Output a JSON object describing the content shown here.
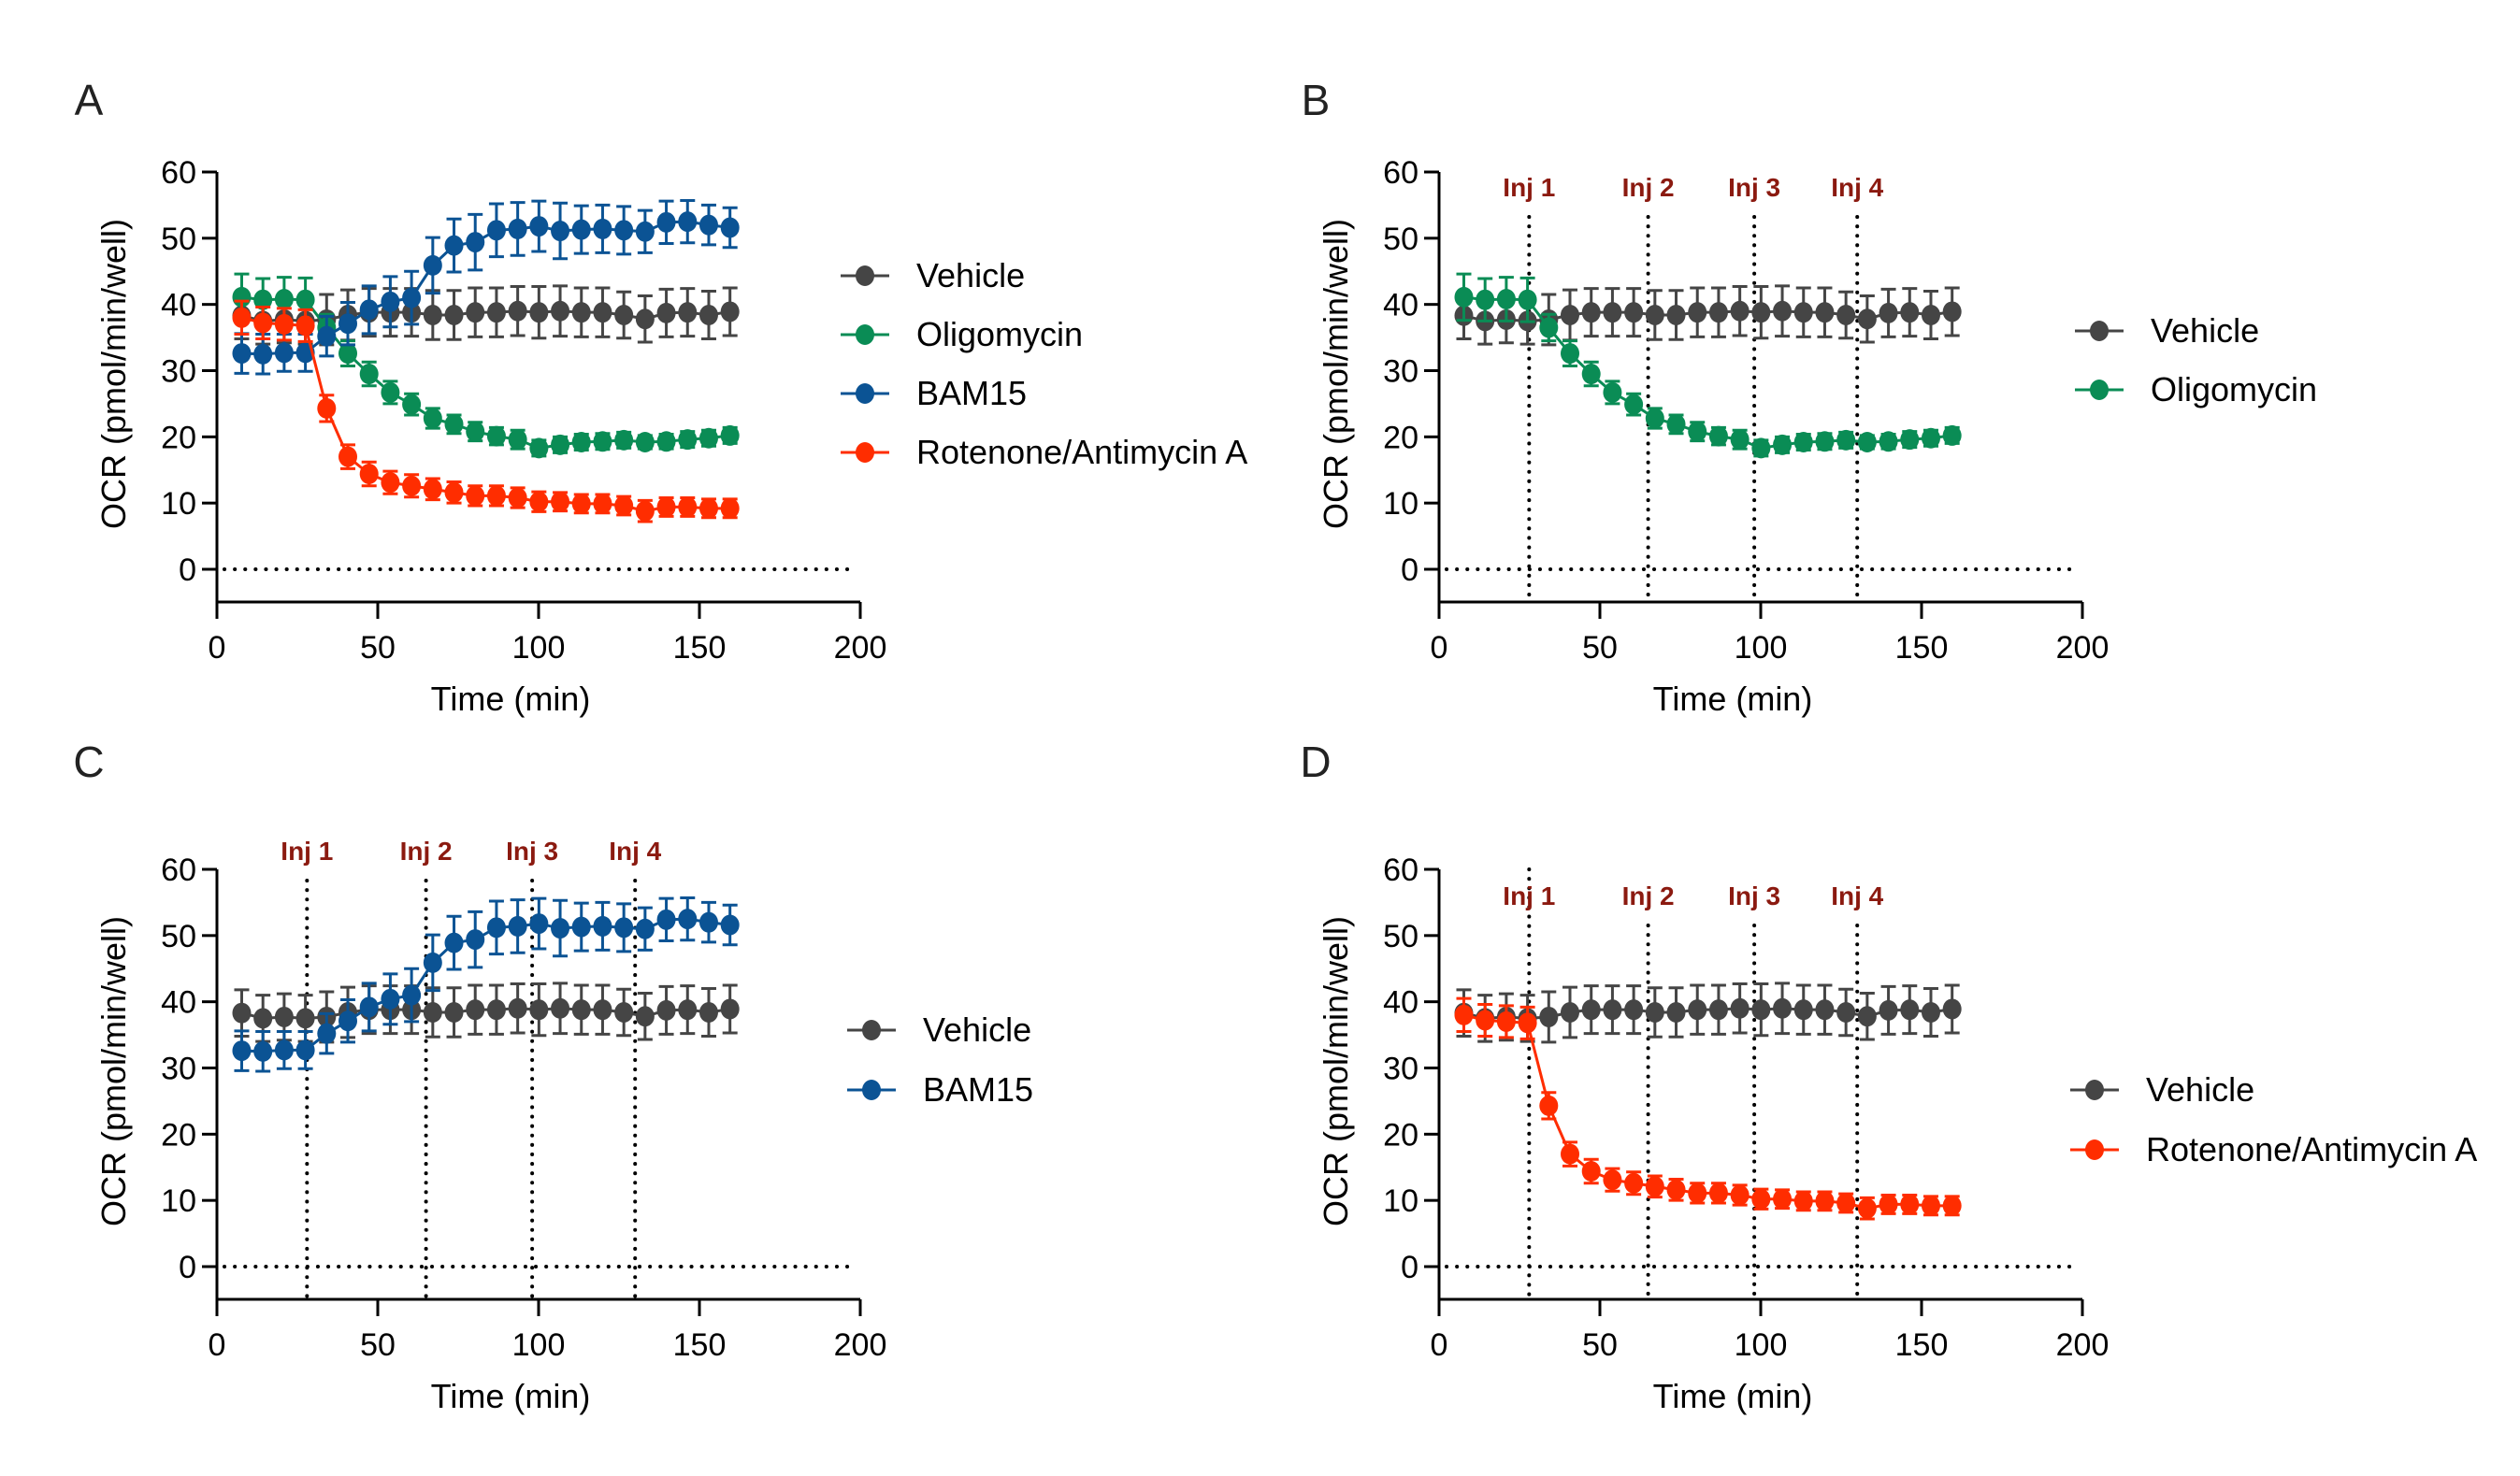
{
  "figure": {
    "panels_count": 4
  },
  "chart_data": [
    {
      "panel": "A",
      "type": "line",
      "xlabel": "Time (min)",
      "ylabel": "OCR (pmol/min/well)",
      "xlim": [
        0,
        200
      ],
      "ylim": [
        -5,
        60
      ],
      "xticks": [
        "0",
        "50",
        "100",
        "150",
        "200"
      ],
      "yticks": [
        "0",
        "10",
        "20",
        "30",
        "40",
        "50",
        "60"
      ],
      "reference_line_y": 0,
      "injections": [],
      "legend_position": "right",
      "x": [
        7.7,
        14.3,
        20.9,
        27.5,
        34.1,
        40.7,
        47.3,
        53.9,
        60.5,
        67.1,
        73.7,
        80.3,
        86.9,
        93.5,
        100.1,
        106.7,
        113.3,
        119.9,
        126.5,
        133.1,
        139.7,
        146.3,
        152.9,
        159.5
      ],
      "series": [
        {
          "name": "Vehicle",
          "color": "#454545",
          "values": [
            38.3,
            37.5,
            37.7,
            37.5,
            37.7,
            38.4,
            38.8,
            38.8,
            38.8,
            38.4,
            38.4,
            38.8,
            38.8,
            39.0,
            38.8,
            39.0,
            38.8,
            38.8,
            38.4,
            37.8,
            38.7,
            38.8,
            38.4,
            38.9
          ],
          "errors": [
            3.5,
            3.5,
            3.5,
            3.5,
            3.8,
            3.8,
            3.6,
            3.6,
            3.6,
            3.7,
            3.7,
            3.7,
            3.7,
            3.7,
            3.9,
            3.8,
            3.7,
            3.7,
            3.5,
            3.5,
            3.6,
            3.6,
            3.6,
            3.6
          ]
        },
        {
          "name": "Oligomycin",
          "color": "#0a8c55",
          "values": [
            41.1,
            40.7,
            40.8,
            40.7,
            36.5,
            32.6,
            29.5,
            26.7,
            24.9,
            22.8,
            21.9,
            20.8,
            20.1,
            19.6,
            18.3,
            18.8,
            19.2,
            19.3,
            19.5,
            19.2,
            19.3,
            19.6,
            19.8,
            20.2
          ],
          "errors": [
            3.5,
            3.2,
            3.3,
            3.3,
            2.0,
            1.9,
            1.8,
            1.7,
            1.6,
            1.5,
            1.4,
            1.4,
            1.3,
            1.4,
            1.2,
            1.2,
            1.2,
            1.2,
            1.2,
            1.0,
            1.1,
            1.2,
            1.2,
            1.2
          ]
        },
        {
          "name": "BAM15",
          "color": "#0b5394",
          "values": [
            32.6,
            32.5,
            32.7,
            32.7,
            35.2,
            37.1,
            39.2,
            40.4,
            41.0,
            45.9,
            48.9,
            49.4,
            51.2,
            51.4,
            51.8,
            51.1,
            51.3,
            51.4,
            51.2,
            51.0,
            52.4,
            52.5,
            52.0,
            51.6
          ],
          "errors": [
            3.0,
            3.0,
            2.8,
            2.8,
            3.0,
            3.2,
            3.6,
            3.8,
            4.0,
            4.2,
            4.0,
            4.2,
            4.0,
            4.0,
            3.8,
            4.2,
            3.6,
            3.6,
            3.6,
            3.2,
            3.2,
            3.2,
            3.0,
            3.0
          ]
        },
        {
          "name": "Rotenone/Antimycin A",
          "color": "#ff2d00",
          "values": [
            38.0,
            37.2,
            37.0,
            36.8,
            24.3,
            17.0,
            14.4,
            13.1,
            12.6,
            12.1,
            11.6,
            11.1,
            11.1,
            10.8,
            10.2,
            10.2,
            9.9,
            9.9,
            9.6,
            8.8,
            9.4,
            9.4,
            9.2,
            9.2
          ],
          "errors": [
            2.5,
            2.4,
            2.4,
            2.4,
            2.0,
            1.8,
            1.8,
            1.7,
            1.7,
            1.6,
            1.6,
            1.5,
            1.5,
            1.5,
            1.5,
            1.4,
            1.4,
            1.4,
            1.4,
            1.6,
            1.4,
            1.4,
            1.4,
            1.4
          ]
        }
      ]
    },
    {
      "panel": "B",
      "type": "line",
      "xlabel": "Time (min)",
      "ylabel": "OCR (pmol/min/well)",
      "xlim": [
        0,
        200
      ],
      "ylim": [
        -5,
        60
      ],
      "xticks": [
        "0",
        "50",
        "100",
        "150",
        "200"
      ],
      "yticks": [
        "0",
        "10",
        "20",
        "30",
        "40",
        "50",
        "60"
      ],
      "reference_line_y": 0,
      "injections": [
        {
          "label": "Inj 1",
          "x": 28
        },
        {
          "label": "Inj 2",
          "x": 65
        },
        {
          "label": "Inj 3",
          "x": 98
        },
        {
          "label": "Inj 4",
          "x": 130
        }
      ],
      "injection_color": "#8b1a10",
      "legend_position": "right",
      "x": [
        7.7,
        14.3,
        20.9,
        27.5,
        34.1,
        40.7,
        47.3,
        53.9,
        60.5,
        67.1,
        73.7,
        80.3,
        86.9,
        93.5,
        100.1,
        106.7,
        113.3,
        119.9,
        126.5,
        133.1,
        139.7,
        146.3,
        152.9,
        159.5
      ],
      "series": [
        {
          "name": "Vehicle",
          "color": "#454545",
          "values": [
            38.3,
            37.5,
            37.7,
            37.5,
            37.7,
            38.4,
            38.8,
            38.8,
            38.8,
            38.4,
            38.4,
            38.8,
            38.8,
            39.0,
            38.8,
            39.0,
            38.8,
            38.8,
            38.4,
            37.8,
            38.7,
            38.8,
            38.4,
            38.9
          ],
          "errors": [
            3.5,
            3.5,
            3.5,
            3.5,
            3.8,
            3.8,
            3.6,
            3.6,
            3.6,
            3.7,
            3.7,
            3.7,
            3.7,
            3.7,
            3.9,
            3.8,
            3.7,
            3.7,
            3.5,
            3.5,
            3.6,
            3.6,
            3.6,
            3.6
          ]
        },
        {
          "name": "Oligomycin",
          "color": "#0a8c55",
          "values": [
            41.1,
            40.7,
            40.8,
            40.7,
            36.5,
            32.6,
            29.5,
            26.7,
            24.9,
            22.8,
            21.9,
            20.8,
            20.1,
            19.6,
            18.3,
            18.8,
            19.2,
            19.3,
            19.5,
            19.2,
            19.3,
            19.6,
            19.8,
            20.2
          ],
          "errors": [
            3.5,
            3.2,
            3.3,
            3.3,
            2.0,
            1.9,
            1.8,
            1.7,
            1.6,
            1.5,
            1.4,
            1.4,
            1.3,
            1.4,
            1.2,
            1.2,
            1.2,
            1.2,
            1.2,
            1.0,
            1.1,
            1.2,
            1.2,
            1.2
          ]
        }
      ]
    },
    {
      "panel": "C",
      "type": "line",
      "xlabel": "Time (min)",
      "ylabel": "OCR (pmol/min/well)",
      "xlim": [
        0,
        200
      ],
      "ylim": [
        -5,
        60
      ],
      "xticks": [
        "0",
        "50",
        "100",
        "150",
        "200"
      ],
      "yticks": [
        "0",
        "10",
        "20",
        "30",
        "40",
        "50",
        "60"
      ],
      "reference_line_y": 0,
      "injections": [
        {
          "label": "Inj 1",
          "x": 28
        },
        {
          "label": "Inj 2",
          "x": 65
        },
        {
          "label": "Inj 3",
          "x": 98
        },
        {
          "label": "Inj 4",
          "x": 130
        }
      ],
      "injection_color": "#8b1a10",
      "legend_position": "right",
      "x": [
        7.7,
        14.3,
        20.9,
        27.5,
        34.1,
        40.7,
        47.3,
        53.9,
        60.5,
        67.1,
        73.7,
        80.3,
        86.9,
        93.5,
        100.1,
        106.7,
        113.3,
        119.9,
        126.5,
        133.1,
        139.7,
        146.3,
        152.9,
        159.5
      ],
      "series": [
        {
          "name": "Vehicle",
          "color": "#454545",
          "values": [
            38.3,
            37.5,
            37.7,
            37.5,
            37.7,
            38.4,
            38.8,
            38.8,
            38.8,
            38.4,
            38.4,
            38.8,
            38.8,
            39.0,
            38.8,
            39.0,
            38.8,
            38.8,
            38.4,
            37.8,
            38.7,
            38.8,
            38.4,
            38.9
          ],
          "errors": [
            3.5,
            3.5,
            3.5,
            3.5,
            3.8,
            3.8,
            3.6,
            3.6,
            3.6,
            3.7,
            3.7,
            3.7,
            3.7,
            3.7,
            3.9,
            3.8,
            3.7,
            3.7,
            3.5,
            3.5,
            3.6,
            3.6,
            3.6,
            3.6
          ]
        },
        {
          "name": "BAM15",
          "color": "#0b5394",
          "values": [
            32.6,
            32.5,
            32.7,
            32.7,
            35.2,
            37.1,
            39.2,
            40.4,
            41.0,
            45.9,
            48.9,
            49.4,
            51.2,
            51.4,
            51.8,
            51.1,
            51.3,
            51.4,
            51.2,
            51.0,
            52.4,
            52.5,
            52.0,
            51.6
          ],
          "errors": [
            3.0,
            3.0,
            2.8,
            2.8,
            3.0,
            3.2,
            3.6,
            3.8,
            4.0,
            4.2,
            4.0,
            4.2,
            4.0,
            4.0,
            3.8,
            4.2,
            3.6,
            3.6,
            3.6,
            3.2,
            3.2,
            3.2,
            3.0,
            3.0
          ]
        }
      ]
    },
    {
      "panel": "D",
      "type": "line",
      "xlabel": "Time (min)",
      "ylabel": "OCR (pmol/min/well)",
      "xlim": [
        0,
        200
      ],
      "ylim": [
        -5,
        60
      ],
      "xticks": [
        "0",
        "50",
        "100",
        "150",
        "200"
      ],
      "yticks": [
        "0",
        "10",
        "20",
        "30",
        "40",
        "50",
        "60"
      ],
      "reference_line_y": 0,
      "injections": [
        {
          "label": "Inj 1",
          "x": 28
        },
        {
          "label": "Inj 2",
          "x": 65
        },
        {
          "label": "Inj 3",
          "x": 98
        },
        {
          "label": "Inj 4",
          "x": 130
        }
      ],
      "injection_color": "#8b1a10",
      "legend_position": "right",
      "x": [
        7.7,
        14.3,
        20.9,
        27.5,
        34.1,
        40.7,
        47.3,
        53.9,
        60.5,
        67.1,
        73.7,
        80.3,
        86.9,
        93.5,
        100.1,
        106.7,
        113.3,
        119.9,
        126.5,
        133.1,
        139.7,
        146.3,
        152.9,
        159.5
      ],
      "series": [
        {
          "name": "Vehicle",
          "color": "#454545",
          "values": [
            38.3,
            37.5,
            37.7,
            37.5,
            37.7,
            38.4,
            38.8,
            38.8,
            38.8,
            38.4,
            38.4,
            38.8,
            38.8,
            39.0,
            38.8,
            39.0,
            38.8,
            38.8,
            38.4,
            37.8,
            38.7,
            38.8,
            38.4,
            38.9
          ],
          "errors": [
            3.5,
            3.5,
            3.5,
            3.5,
            3.8,
            3.8,
            3.6,
            3.6,
            3.6,
            3.7,
            3.7,
            3.7,
            3.7,
            3.7,
            3.9,
            3.8,
            3.7,
            3.7,
            3.5,
            3.5,
            3.6,
            3.6,
            3.6,
            3.6
          ]
        },
        {
          "name": "Rotenone/Antimycin A",
          "color": "#ff2d00",
          "values": [
            38.0,
            37.2,
            37.0,
            36.8,
            24.3,
            17.0,
            14.4,
            13.1,
            12.6,
            12.1,
            11.6,
            11.1,
            11.1,
            10.8,
            10.2,
            10.2,
            9.9,
            9.9,
            9.6,
            8.8,
            9.4,
            9.4,
            9.2,
            9.2
          ],
          "errors": [
            2.5,
            2.4,
            2.4,
            2.4,
            2.0,
            1.8,
            1.8,
            1.7,
            1.7,
            1.6,
            1.6,
            1.5,
            1.5,
            1.5,
            1.5,
            1.4,
            1.4,
            1.4,
            1.4,
            1.6,
            1.4,
            1.4,
            1.4,
            1.4
          ]
        }
      ]
    }
  ]
}
